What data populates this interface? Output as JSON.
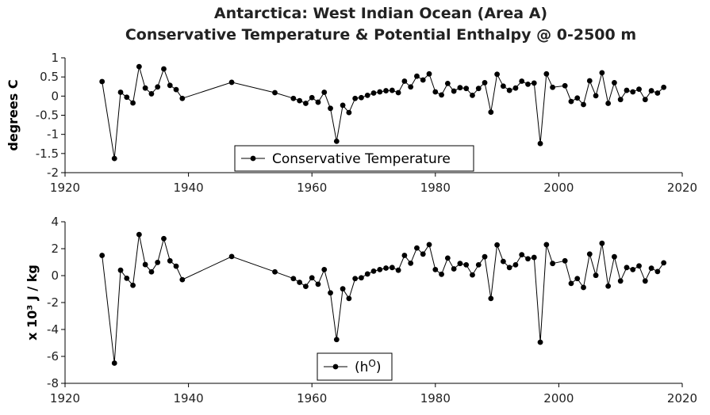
{
  "title_line1": "Antarctica: West Indian Ocean (Area A)",
  "title_line2": "Conservative Temperature & Potential Enthalpy @ 0-2500 m",
  "chart_data": [
    {
      "type": "line",
      "ylabel": "degrees C",
      "xlim": [
        1920,
        2020
      ],
      "ylim": [
        -2,
        1
      ],
      "xticks": [
        1920,
        1940,
        1960,
        1980,
        2000,
        2020
      ],
      "yticks": [
        1,
        0.5,
        0,
        -0.5,
        -1,
        -1.5,
        -2
      ],
      "ytick_labels": [
        "1",
        "0.5",
        "0",
        "-0.5",
        "-1",
        "-1.5",
        "-2"
      ],
      "legend": "bottom-center",
      "series": [
        {
          "name": "Conservative Temperature",
          "points": [
            [
              1926,
              0.38
            ],
            [
              1928,
              -1.63
            ],
            [
              1929,
              0.1
            ],
            [
              1930,
              -0.03
            ],
            [
              1931,
              -0.18
            ],
            [
              1932,
              0.77
            ],
            [
              1933,
              0.21
            ],
            [
              1934,
              0.06
            ],
            [
              1935,
              0.24
            ],
            [
              1936,
              0.71
            ],
            [
              1937,
              0.28
            ],
            [
              1938,
              0.17
            ],
            [
              1939,
              -0.06
            ],
            [
              1947,
              0.36
            ],
            [
              1954,
              0.09
            ],
            [
              1957,
              -0.06
            ],
            [
              1958,
              -0.12
            ],
            [
              1959,
              -0.19
            ],
            [
              1960,
              -0.04
            ],
            [
              1961,
              -0.16
            ],
            [
              1962,
              0.1
            ],
            [
              1963,
              -0.32
            ],
            [
              1964,
              -1.18
            ],
            [
              1965,
              -0.24
            ],
            [
              1966,
              -0.43
            ],
            [
              1967,
              -0.06
            ],
            [
              1968,
              -0.04
            ],
            [
              1969,
              0.02
            ],
            [
              1970,
              0.08
            ],
            [
              1971,
              0.11
            ],
            [
              1972,
              0.14
            ],
            [
              1973,
              0.15
            ],
            [
              1974,
              0.09
            ],
            [
              1975,
              0.39
            ],
            [
              1976,
              0.24
            ],
            [
              1977,
              0.52
            ],
            [
              1978,
              0.42
            ],
            [
              1979,
              0.58
            ],
            [
              1980,
              0.11
            ],
            [
              1981,
              0.03
            ],
            [
              1982,
              0.33
            ],
            [
              1983,
              0.13
            ],
            [
              1984,
              0.22
            ],
            [
              1985,
              0.2
            ],
            [
              1986,
              0.02
            ],
            [
              1987,
              0.2
            ],
            [
              1988,
              0.35
            ],
            [
              1989,
              -0.42
            ],
            [
              1990,
              0.57
            ],
            [
              1991,
              0.26
            ],
            [
              1992,
              0.15
            ],
            [
              1993,
              0.21
            ],
            [
              1994,
              0.39
            ],
            [
              1995,
              0.31
            ],
            [
              1996,
              0.34
            ],
            [
              1997,
              -1.24
            ],
            [
              1998,
              0.58
            ],
            [
              1999,
              0.23
            ],
            [
              2001,
              0.27
            ],
            [
              2002,
              -0.14
            ],
            [
              2003,
              -0.05
            ],
            [
              2004,
              -0.22
            ],
            [
              2005,
              0.4
            ],
            [
              2006,
              0.01
            ],
            [
              2007,
              0.61
            ],
            [
              2008,
              -0.19
            ],
            [
              2009,
              0.35
            ],
            [
              2010,
              -0.09
            ],
            [
              2011,
              0.15
            ],
            [
              2012,
              0.11
            ],
            [
              2013,
              0.18
            ],
            [
              2014,
              -0.09
            ],
            [
              2015,
              0.14
            ],
            [
              2016,
              0.08
            ],
            [
              2017,
              0.23
            ]
          ]
        }
      ]
    },
    {
      "type": "line",
      "ylabel": "x 10³ J / kg",
      "xlim": [
        1920,
        2020
      ],
      "ylim": [
        -8,
        4
      ],
      "xticks": [
        1920,
        1940,
        1960,
        1980,
        2000,
        2020
      ],
      "yticks": [
        4,
        2,
        0,
        -2,
        -4,
        -6,
        -8
      ],
      "ytick_labels": [
        "4",
        "2",
        "0",
        "-2",
        "-4",
        "-6",
        "-8"
      ],
      "legend": "bottom-center",
      "series": [
        {
          "name": "(hO)",
          "points": [
            [
              1926,
              1.5
            ],
            [
              1928,
              -6.5
            ],
            [
              1929,
              0.4
            ],
            [
              1930,
              -0.2
            ],
            [
              1931,
              -0.72
            ],
            [
              1932,
              3.05
            ],
            [
              1933,
              0.82
            ],
            [
              1934,
              0.28
            ],
            [
              1935,
              0.98
            ],
            [
              1936,
              2.75
            ],
            [
              1937,
              1.1
            ],
            [
              1938,
              0.7
            ],
            [
              1939,
              -0.3
            ],
            [
              1947,
              1.42
            ],
            [
              1954,
              0.28
            ],
            [
              1957,
              -0.22
            ],
            [
              1958,
              -0.5
            ],
            [
              1959,
              -0.8
            ],
            [
              1960,
              -0.16
            ],
            [
              1961,
              -0.64
            ],
            [
              1962,
              0.45
            ],
            [
              1963,
              -1.28
            ],
            [
              1964,
              -4.75
            ],
            [
              1965,
              -0.98
            ],
            [
              1966,
              -1.7
            ],
            [
              1967,
              -0.22
            ],
            [
              1968,
              -0.16
            ],
            [
              1969,
              0.12
            ],
            [
              1970,
              0.33
            ],
            [
              1971,
              0.45
            ],
            [
              1972,
              0.56
            ],
            [
              1973,
              0.6
            ],
            [
              1974,
              0.4
            ],
            [
              1975,
              1.5
            ],
            [
              1976,
              0.92
            ],
            [
              1977,
              2.05
            ],
            [
              1978,
              1.6
            ],
            [
              1979,
              2.3
            ],
            [
              1980,
              0.45
            ],
            [
              1981,
              0.1
            ],
            [
              1982,
              1.3
            ],
            [
              1983,
              0.5
            ],
            [
              1984,
              0.9
            ],
            [
              1985,
              0.8
            ],
            [
              1986,
              0.05
            ],
            [
              1987,
              0.8
            ],
            [
              1988,
              1.4
            ],
            [
              1989,
              -1.7
            ],
            [
              1990,
              2.28
            ],
            [
              1991,
              1.05
            ],
            [
              1992,
              0.6
            ],
            [
              1993,
              0.8
            ],
            [
              1994,
              1.55
            ],
            [
              1995,
              1.25
            ],
            [
              1996,
              1.35
            ],
            [
              1997,
              -4.95
            ],
            [
              1998,
              2.3
            ],
            [
              1999,
              0.9
            ],
            [
              2001,
              1.1
            ],
            [
              2002,
              -0.58
            ],
            [
              2003,
              -0.22
            ],
            [
              2004,
              -0.88
            ],
            [
              2005,
              1.6
            ],
            [
              2006,
              0.02
            ],
            [
              2007,
              2.4
            ],
            [
              2008,
              -0.78
            ],
            [
              2009,
              1.4
            ],
            [
              2010,
              -0.4
            ],
            [
              2011,
              0.6
            ],
            [
              2012,
              0.45
            ],
            [
              2013,
              0.72
            ],
            [
              2014,
              -0.4
            ],
            [
              2015,
              0.55
            ],
            [
              2016,
              0.3
            ],
            [
              2017,
              0.95
            ]
          ]
        }
      ]
    }
  ]
}
